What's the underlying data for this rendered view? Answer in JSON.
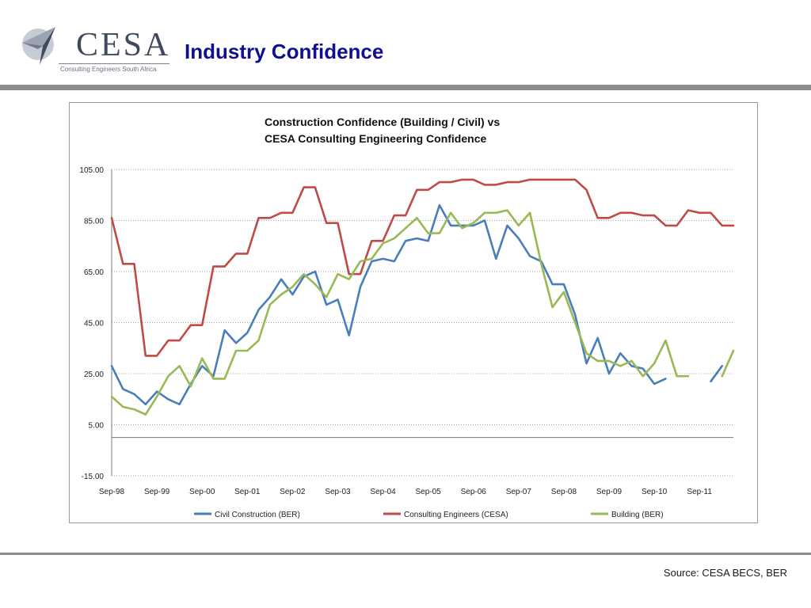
{
  "header": {
    "logo_text": "CESA",
    "logo_subtitle": "Consulting Engineers South Africa",
    "title": "Industry Confidence"
  },
  "footer": {
    "source": "Source: CESA BECS, BER"
  },
  "colors": {
    "title": "#10108f",
    "rule": "#8c8c8c",
    "logo_dark": "#3f4a5c",
    "logo_light": "#9aa3b2"
  },
  "chart_data": {
    "type": "line",
    "title_line1": "Construction Confidence (Building / Civil) vs",
    "title_line2": "CESA Consulting Engineering Confidence",
    "ylim": [
      -15,
      105
    ],
    "yticks": [
      -15,
      5,
      25,
      45,
      65,
      85,
      105
    ],
    "ytick_labels": [
      "-15.00",
      "5.00",
      "25.00",
      "45.00",
      "65.00",
      "85.00",
      "105.00"
    ],
    "xlim": [
      0,
      55
    ],
    "xticks": [
      0,
      4,
      8,
      12,
      16,
      20,
      24,
      28,
      32,
      36,
      40,
      44,
      48,
      52
    ],
    "xtick_labels": [
      "Sep-98",
      "Sep-99",
      "Sep-00",
      "Sep-01",
      "Sep-02",
      "Sep-03",
      "Sep-04",
      "Sep-05",
      "Sep-06",
      "Sep-07",
      "Sep-08",
      "Sep-09",
      "Sep-10",
      "Sep-11"
    ],
    "grid": "horizontal-dotted",
    "legend_position": "bottom",
    "series": [
      {
        "name": "Civil Construction (BER)",
        "color": "#4a7ebb",
        "values": [
          28,
          19,
          17,
          13,
          18,
          15,
          13,
          21,
          28,
          24,
          42,
          37,
          41,
          50,
          55,
          62,
          56,
          63,
          65,
          52,
          54,
          40,
          59,
          69,
          70,
          69,
          77,
          78,
          77,
          91,
          83,
          83,
          83,
          85,
          70,
          83,
          78,
          71,
          69,
          60,
          60,
          48,
          29,
          39,
          25,
          33,
          28,
          27,
          21,
          23,
          null,
          null,
          null,
          22,
          28
        ]
      },
      {
        "name": "Consulting Engineers (CESA)",
        "color": "#be4b48",
        "values": [
          86,
          68,
          68,
          32,
          32,
          38,
          38,
          44,
          44,
          67,
          67,
          72,
          72,
          86,
          86,
          88,
          88,
          98,
          98,
          84,
          84,
          64,
          64,
          77,
          77,
          87,
          87,
          97,
          97,
          100,
          100,
          101,
          101,
          99,
          99,
          100,
          100,
          101,
          101,
          101,
          101,
          101,
          97,
          86,
          86,
          88,
          88,
          87,
          87,
          83,
          83,
          89,
          88,
          88,
          83,
          83
        ]
      },
      {
        "name": "Building (BER)",
        "color": "#98b954",
        "values": [
          16,
          12,
          11,
          9,
          16,
          24,
          28,
          20,
          31,
          23,
          23,
          34,
          34,
          38,
          52,
          56,
          59,
          64,
          60,
          55,
          64,
          62,
          69,
          70,
          76,
          78,
          82,
          86,
          80,
          80,
          88,
          82,
          84,
          88,
          88,
          89,
          83,
          88,
          68,
          51,
          57,
          45,
          33,
          30,
          30,
          28,
          30,
          24,
          29,
          38,
          24,
          24,
          null,
          null,
          24,
          34
        ]
      }
    ]
  }
}
